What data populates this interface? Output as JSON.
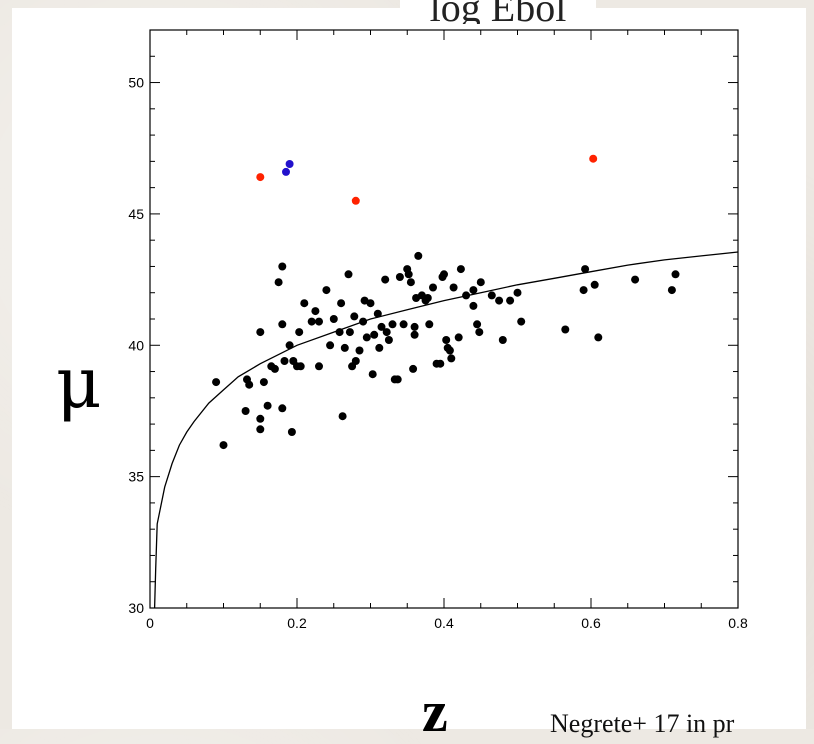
{
  "chart_data": {
    "type": "scatter",
    "title": "",
    "top_label": "log Ebol",
    "xlabel": "z",
    "ylabel": "μ",
    "xlim": [
      0,
      0.8
    ],
    "ylim": [
      30,
      52
    ],
    "x_ticks": [
      "0",
      "0.2",
      "0.4",
      "0.6",
      "0.8"
    ],
    "y_ticks": [
      "30",
      "35",
      "40",
      "45",
      "50"
    ],
    "grid": false,
    "annotation": "Negrete+ 17 in pr",
    "series": [
      {
        "color": "#000000",
        "points": [
          [
            0.09,
            38.6
          ],
          [
            0.1,
            36.2
          ],
          [
            0.13,
            37.5
          ],
          [
            0.132,
            38.7
          ],
          [
            0.135,
            38.5
          ],
          [
            0.15,
            40.5
          ],
          [
            0.15,
            37.2
          ],
          [
            0.15,
            36.8
          ],
          [
            0.155,
            38.6
          ],
          [
            0.16,
            37.7
          ],
          [
            0.165,
            39.2
          ],
          [
            0.17,
            39.1
          ],
          [
            0.175,
            42.4
          ],
          [
            0.18,
            43.0
          ],
          [
            0.18,
            40.8
          ],
          [
            0.18,
            37.6
          ],
          [
            0.183,
            39.4
          ],
          [
            0.19,
            40.0
          ],
          [
            0.193,
            36.7
          ],
          [
            0.195,
            39.4
          ],
          [
            0.2,
            39.2
          ],
          [
            0.203,
            40.5
          ],
          [
            0.205,
            39.2
          ],
          [
            0.21,
            41.6
          ],
          [
            0.22,
            40.9
          ],
          [
            0.225,
            41.3
          ],
          [
            0.23,
            40.9
          ],
          [
            0.23,
            39.2
          ],
          [
            0.24,
            42.1
          ],
          [
            0.245,
            40.0
          ],
          [
            0.25,
            41.0
          ],
          [
            0.258,
            40.5
          ],
          [
            0.26,
            41.6
          ],
          [
            0.262,
            37.3
          ],
          [
            0.265,
            39.9
          ],
          [
            0.27,
            42.7
          ],
          [
            0.272,
            40.5
          ],
          [
            0.275,
            39.2
          ],
          [
            0.278,
            41.1
          ],
          [
            0.28,
            39.4
          ],
          [
            0.285,
            39.8
          ],
          [
            0.29,
            40.9
          ],
          [
            0.292,
            41.7
          ],
          [
            0.295,
            40.3
          ],
          [
            0.3,
            41.6
          ],
          [
            0.303,
            38.9
          ],
          [
            0.305,
            40.4
          ],
          [
            0.31,
            41.2
          ],
          [
            0.312,
            39.9
          ],
          [
            0.315,
            40.7
          ],
          [
            0.32,
            42.5
          ],
          [
            0.322,
            40.5
          ],
          [
            0.325,
            40.2
          ],
          [
            0.33,
            40.8
          ],
          [
            0.333,
            38.7
          ],
          [
            0.337,
            38.7
          ],
          [
            0.34,
            42.6
          ],
          [
            0.345,
            40.8
          ],
          [
            0.35,
            42.9
          ],
          [
            0.352,
            42.7
          ],
          [
            0.355,
            42.4
          ],
          [
            0.358,
            39.1
          ],
          [
            0.36,
            40.7
          ],
          [
            0.36,
            40.4
          ],
          [
            0.362,
            41.8
          ],
          [
            0.365,
            43.4
          ],
          [
            0.37,
            41.9
          ],
          [
            0.375,
            41.7
          ],
          [
            0.378,
            41.8
          ],
          [
            0.38,
            40.8
          ],
          [
            0.385,
            42.2
          ],
          [
            0.39,
            39.3
          ],
          [
            0.395,
            39.3
          ],
          [
            0.398,
            42.6
          ],
          [
            0.4,
            42.7
          ],
          [
            0.403,
            40.2
          ],
          [
            0.405,
            39.9
          ],
          [
            0.408,
            39.8
          ],
          [
            0.41,
            39.5
          ],
          [
            0.413,
            42.2
          ],
          [
            0.42,
            40.3
          ],
          [
            0.423,
            42.9
          ],
          [
            0.43,
            41.9
          ],
          [
            0.44,
            41.5
          ],
          [
            0.44,
            42.1
          ],
          [
            0.445,
            40.8
          ],
          [
            0.448,
            40.5
          ],
          [
            0.45,
            42.4
          ],
          [
            0.465,
            41.9
          ],
          [
            0.475,
            41.7
          ],
          [
            0.48,
            40.2
          ],
          [
            0.49,
            41.7
          ],
          [
            0.5,
            42.0
          ],
          [
            0.505,
            40.9
          ],
          [
            0.565,
            40.6
          ],
          [
            0.59,
            42.1
          ],
          [
            0.592,
            42.9
          ],
          [
            0.605,
            42.3
          ],
          [
            0.61,
            40.3
          ],
          [
            0.66,
            42.5
          ],
          [
            0.71,
            42.1
          ],
          [
            0.715,
            42.7
          ]
        ]
      },
      {
        "color": "#ff2200",
        "points": [
          [
            0.15,
            46.4
          ],
          [
            0.28,
            45.5
          ],
          [
            0.603,
            47.1
          ]
        ]
      },
      {
        "color": "#2211cc",
        "points": [
          [
            0.185,
            46.6
          ],
          [
            0.19,
            46.9
          ]
        ]
      }
    ],
    "curve": {
      "color": "#000000",
      "points": [
        [
          0.0062,
          30
        ],
        [
          0.0078,
          31.5
        ],
        [
          0.0098,
          33.2
        ],
        [
          0.02,
          34.6
        ],
        [
          0.03,
          35.5
        ],
        [
          0.04,
          36.2
        ],
        [
          0.05,
          36.7
        ],
        [
          0.06,
          37.1
        ],
        [
          0.08,
          37.8
        ],
        [
          0.1,
          38.3
        ],
        [
          0.12,
          38.8
        ],
        [
          0.15,
          39.3
        ],
        [
          0.2,
          40.0
        ],
        [
          0.25,
          40.5
        ],
        [
          0.3,
          41.0
        ],
        [
          0.35,
          41.35
        ],
        [
          0.4,
          41.7
        ],
        [
          0.45,
          42.0
        ],
        [
          0.5,
          42.3
        ],
        [
          0.55,
          42.55
        ],
        [
          0.6,
          42.8
        ],
        [
          0.65,
          43.05
        ],
        [
          0.7,
          43.25
        ],
        [
          0.75,
          43.4
        ],
        [
          0.8,
          43.55
        ]
      ]
    }
  }
}
